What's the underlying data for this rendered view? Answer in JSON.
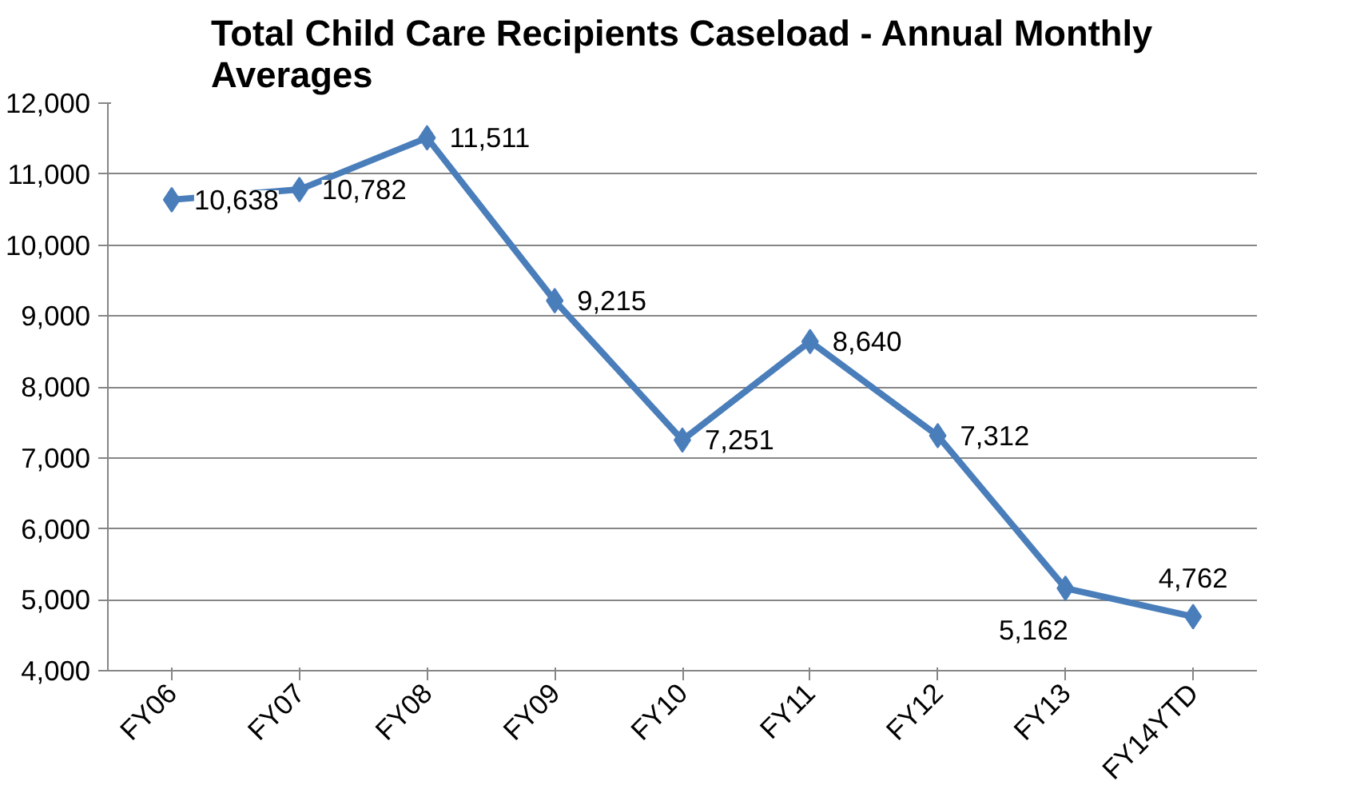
{
  "chart_data": {
    "type": "line",
    "title": "Total Child Care Recipients Caseload - Annual Monthly Averages",
    "categories": [
      "FY06",
      "FY07",
      "FY08",
      "FY09",
      "FY10",
      "FY11",
      "FY12",
      "FY13",
      "FY14YTD"
    ],
    "series": [
      {
        "color": "#4a7ebb",
        "values": [
          10638,
          10782,
          11511,
          9215,
          7251,
          8640,
          7312,
          5162,
          4762
        ],
        "value_labels": [
          "10,638",
          "10,782",
          "11,511",
          "9,215",
          "7,251",
          "8,640",
          "7,312",
          "5,162",
          "4,762"
        ]
      }
    ],
    "ylim": [
      4000,
      12000
    ],
    "yticks": [
      {
        "value": 4000,
        "label": "4,000"
      },
      {
        "value": 5000,
        "label": "5,000"
      },
      {
        "value": 6000,
        "label": "6,000"
      },
      {
        "value": 7000,
        "label": "7,000"
      },
      {
        "value": 8000,
        "label": "8,000"
      },
      {
        "value": 9000,
        "label": "9,000"
      },
      {
        "value": 10000,
        "label": "10,000"
      },
      {
        "value": 11000,
        "label": "11,000"
      },
      {
        "value": 12000,
        "label": "12,000"
      }
    ],
    "grid": "y",
    "marker": "diamond"
  }
}
